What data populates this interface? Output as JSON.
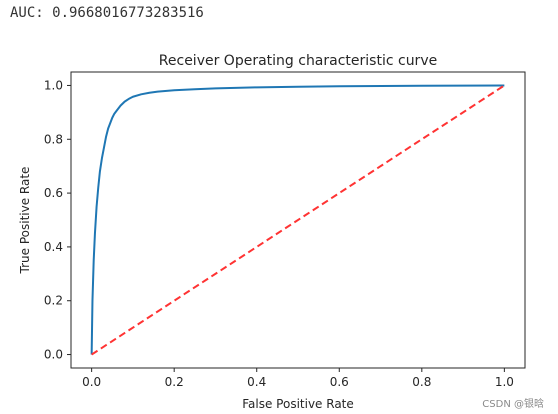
{
  "output": {
    "text": "AUC: 0.9668016773283516"
  },
  "watermark": {
    "text": "CSDN @银晗"
  },
  "chart_data": {
    "type": "line",
    "title": "Receiver Operating characteristic curve",
    "xlabel": "False Positive Rate",
    "ylabel": "True Positive Rate",
    "xlim": [
      -0.05,
      1.05
    ],
    "ylim": [
      -0.05,
      1.05
    ],
    "xticks": [
      0.0,
      0.2,
      0.4,
      0.6,
      0.8,
      1.0
    ],
    "xtick_labels": [
      "0.0",
      "0.2",
      "0.4",
      "0.6",
      "0.8",
      "1.0"
    ],
    "yticks": [
      0.0,
      0.2,
      0.4,
      0.6,
      0.8,
      1.0
    ],
    "ytick_labels": [
      "0.0",
      "0.2",
      "0.4",
      "0.6",
      "0.8",
      "1.0"
    ],
    "grid": false,
    "series": [
      {
        "style": "solid",
        "color": "#1f77b4",
        "x": [
          0.0,
          0.002,
          0.005,
          0.008,
          0.012,
          0.016,
          0.02,
          0.025,
          0.03,
          0.035,
          0.04,
          0.045,
          0.05,
          0.055,
          0.06,
          0.07,
          0.08,
          0.09,
          0.1,
          0.12,
          0.14,
          0.16,
          0.2,
          0.25,
          0.3,
          0.4,
          0.5,
          0.6,
          0.8,
          1.0
        ],
        "y": [
          0.0,
          0.2,
          0.35,
          0.45,
          0.55,
          0.62,
          0.68,
          0.73,
          0.77,
          0.81,
          0.84,
          0.86,
          0.88,
          0.895,
          0.905,
          0.925,
          0.94,
          0.95,
          0.958,
          0.967,
          0.973,
          0.977,
          0.982,
          0.986,
          0.989,
          0.993,
          0.995,
          0.997,
          0.999,
          1.0
        ]
      },
      {
        "style": "dashed",
        "color": "#ff3333",
        "x": [
          0.0,
          1.0
        ],
        "y": [
          0.0,
          1.0
        ]
      }
    ]
  }
}
